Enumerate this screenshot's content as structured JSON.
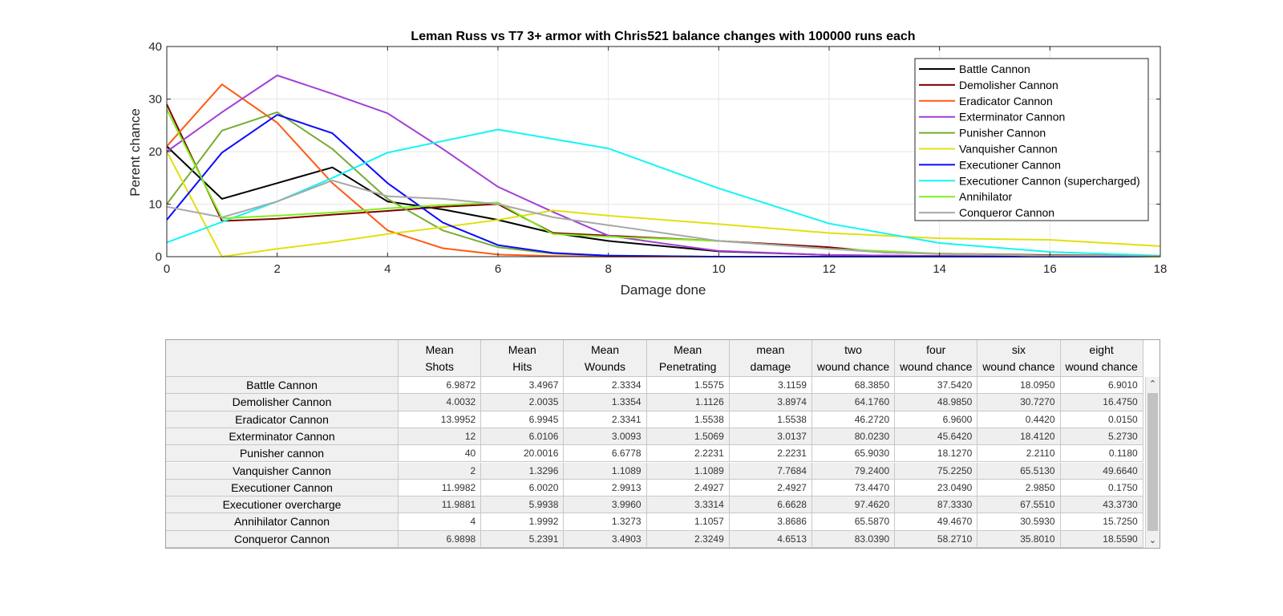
{
  "colors": {
    "battle": "#000000",
    "demolisher": "#7f0000",
    "eradicator": "#ff5a14",
    "exterminator": "#a23fd6",
    "punisher": "#77ac30",
    "vanquisher": "#e0e011",
    "executioner": "#0a0aff",
    "executioner_sc": "#12f5f5",
    "annihilator": "#7ff01a",
    "conqueror": "#a8a8a8"
  },
  "chart_data": {
    "type": "line",
    "title": "Leman Russ vs T7 3+ armor with Chris521 balance changes with 100000 runs each",
    "xlabel": "Damage done",
    "ylabel": "Perent chance",
    "xlim": [
      0,
      18
    ],
    "ylim": [
      0,
      40
    ],
    "xticks": [
      "0",
      "2",
      "4",
      "6",
      "8",
      "10",
      "12",
      "14",
      "16",
      "18"
    ],
    "yticks": [
      "0",
      "10",
      "20",
      "30",
      "40"
    ],
    "grid": true,
    "legend_position": "top-right",
    "series": [
      {
        "name": "Battle Cannon",
        "color_key": "battle",
        "points": [
          [
            0,
            21
          ],
          [
            1,
            11
          ],
          [
            2,
            14
          ],
          [
            3,
            17
          ],
          [
            4,
            10.5
          ],
          [
            5,
            9
          ],
          [
            6,
            7
          ],
          [
            7,
            4.5
          ],
          [
            8,
            3
          ],
          [
            10,
            1
          ],
          [
            12,
            0.3
          ],
          [
            14,
            0.1
          ],
          [
            18,
            0
          ]
        ]
      },
      {
        "name": "Demolisher Cannon",
        "color_key": "demolisher",
        "points": [
          [
            0,
            29
          ],
          [
            1,
            6.8
          ],
          [
            2,
            7.2
          ],
          [
            3,
            8
          ],
          [
            4,
            8.7
          ],
          [
            5,
            9.5
          ],
          [
            6,
            10
          ],
          [
            7,
            4.5
          ],
          [
            8,
            4
          ],
          [
            10,
            3
          ],
          [
            12,
            1.8
          ],
          [
            13,
            0.8
          ],
          [
            14,
            0.6
          ],
          [
            16,
            0.3
          ],
          [
            18,
            0.1
          ]
        ]
      },
      {
        "name": "Eradicator Cannon",
        "color_key": "eradicator",
        "points": [
          [
            0,
            21
          ],
          [
            1,
            32.8
          ],
          [
            2,
            25.5
          ],
          [
            3,
            14
          ],
          [
            4,
            5
          ],
          [
            5,
            1.6
          ],
          [
            6,
            0.4
          ],
          [
            7,
            0.1
          ],
          [
            8,
            0
          ],
          [
            18,
            0
          ]
        ]
      },
      {
        "name": "Exterminator Cannon",
        "color_key": "exterminator",
        "points": [
          [
            0,
            20
          ],
          [
            1,
            27.5
          ],
          [
            2,
            34.5
          ],
          [
            3,
            31
          ],
          [
            4,
            27.3
          ],
          [
            5,
            20.5
          ],
          [
            6,
            13.3
          ],
          [
            7,
            8.5
          ],
          [
            8,
            4
          ],
          [
            9,
            2.5
          ],
          [
            10,
            1.1
          ],
          [
            12,
            0.3
          ],
          [
            14,
            0.1
          ],
          [
            18,
            0
          ]
        ]
      },
      {
        "name": "Punisher Cannon",
        "color_key": "punisher",
        "points": [
          [
            0,
            10
          ],
          [
            1,
            24
          ],
          [
            2,
            27.5
          ],
          [
            3,
            20.5
          ],
          [
            4,
            11
          ],
          [
            5,
            5
          ],
          [
            6,
            1.8
          ],
          [
            7,
            0.6
          ],
          [
            8,
            0.2
          ],
          [
            10,
            0
          ],
          [
            18,
            0
          ]
        ]
      },
      {
        "name": "Vanquisher Cannon",
        "color_key": "vanquisher",
        "points": [
          [
            0,
            20
          ],
          [
            1,
            0
          ],
          [
            2,
            1.5
          ],
          [
            3,
            2.8
          ],
          [
            4,
            4.3
          ],
          [
            5,
            5.6
          ],
          [
            6,
            7
          ],
          [
            7,
            8.8
          ],
          [
            8,
            7.8
          ],
          [
            10,
            6.2
          ],
          [
            12,
            4.5
          ],
          [
            14,
            3.5
          ],
          [
            16,
            3.2
          ],
          [
            18,
            2
          ]
        ]
      },
      {
        "name": "Executioner Cannon",
        "color_key": "executioner",
        "points": [
          [
            0,
            7
          ],
          [
            1,
            19.8
          ],
          [
            2,
            27
          ],
          [
            3,
            23.5
          ],
          [
            4,
            14
          ],
          [
            5,
            6.5
          ],
          [
            6,
            2.2
          ],
          [
            7,
            0.7
          ],
          [
            8,
            0.2
          ],
          [
            10,
            0
          ],
          [
            18,
            0
          ]
        ]
      },
      {
        "name": "Executioner Cannon (supercharged)",
        "color_key": "executioner_sc",
        "points": [
          [
            0,
            2.7
          ],
          [
            2,
            10.5
          ],
          [
            3,
            15
          ],
          [
            4,
            19.8
          ],
          [
            6,
            24.2
          ],
          [
            8,
            20.6
          ],
          [
            10,
            13
          ],
          [
            12,
            6.3
          ],
          [
            14,
            2.6
          ],
          [
            16,
            0.9
          ],
          [
            18,
            0.2
          ]
        ]
      },
      {
        "name": "Annihilator",
        "color_key": "annihilator",
        "points": [
          [
            0,
            28
          ],
          [
            1,
            7.3
          ],
          [
            2,
            7.8
          ],
          [
            3,
            8.4
          ],
          [
            4,
            9.2
          ],
          [
            5,
            9.8
          ],
          [
            6,
            10.3
          ],
          [
            7,
            4.3
          ],
          [
            8,
            3.8
          ],
          [
            10,
            3
          ],
          [
            12,
            1.5
          ],
          [
            14,
            0.6
          ],
          [
            16,
            0.2
          ],
          [
            18,
            0
          ]
        ]
      },
      {
        "name": "Conqueror Cannon",
        "color_key": "conqueror",
        "points": [
          [
            0,
            9.5
          ],
          [
            1,
            7.5
          ],
          [
            2,
            10.5
          ],
          [
            3,
            14.5
          ],
          [
            4,
            11.5
          ],
          [
            5,
            11
          ],
          [
            6,
            10
          ],
          [
            7,
            7.5
          ],
          [
            8,
            6
          ],
          [
            10,
            3
          ],
          [
            12,
            1.5
          ],
          [
            13,
            0.8
          ],
          [
            14,
            0.5
          ],
          [
            16,
            0.2
          ],
          [
            18,
            0.1
          ]
        ]
      }
    ]
  },
  "table": {
    "columns": [
      [
        "Mean",
        "Shots"
      ],
      [
        "Mean",
        "Hits"
      ],
      [
        "Mean",
        "Wounds"
      ],
      [
        "Mean",
        "Penetrating"
      ],
      [
        "mean",
        "damage"
      ],
      [
        "two",
        "wound chance"
      ],
      [
        "four",
        "wound chance"
      ],
      [
        "six",
        "wound chance"
      ],
      [
        "eight",
        "wound chance"
      ]
    ],
    "rows": [
      {
        "name": "Battle Cannon",
        "values": [
          "6.9872",
          "3.4967",
          "2.3334",
          "1.5575",
          "3.1159",
          "68.3850",
          "37.5420",
          "18.0950",
          "6.9010"
        ]
      },
      {
        "name": "Demolisher Cannon",
        "values": [
          "4.0032",
          "2.0035",
          "1.3354",
          "1.1126",
          "3.8974",
          "64.1760",
          "48.9850",
          "30.7270",
          "16.4750"
        ]
      },
      {
        "name": "Eradicator Cannon",
        "values": [
          "13.9952",
          "6.9945",
          "2.3341",
          "1.5538",
          "1.5538",
          "46.2720",
          "6.9600",
          "0.4420",
          "0.0150"
        ]
      },
      {
        "name": "Exterminator Cannon",
        "values": [
          "12",
          "6.0106",
          "3.0093",
          "1.5069",
          "3.0137",
          "80.0230",
          "45.6420",
          "18.4120",
          "5.2730"
        ]
      },
      {
        "name": "Punisher cannon",
        "values": [
          "40",
          "20.0016",
          "6.6778",
          "2.2231",
          "2.2231",
          "65.9030",
          "18.1270",
          "2.2110",
          "0.1180"
        ]
      },
      {
        "name": "Vanquisher Cannon",
        "values": [
          "2",
          "1.3296",
          "1.1089",
          "1.1089",
          "7.7684",
          "79.2400",
          "75.2250",
          "65.5130",
          "49.6640"
        ]
      },
      {
        "name": "Executioner Cannon",
        "values": [
          "11.9982",
          "6.0020",
          "2.9913",
          "2.4927",
          "2.4927",
          "73.4470",
          "23.0490",
          "2.9850",
          "0.1750"
        ]
      },
      {
        "name": "Executioner overcharge",
        "values": [
          "11.9881",
          "5.9938",
          "3.9960",
          "3.3314",
          "6.6628",
          "97.4620",
          "87.3330",
          "67.5510",
          "43.3730"
        ]
      },
      {
        "name": "Annihilator Cannon",
        "values": [
          "4",
          "1.9992",
          "1.3273",
          "1.1057",
          "3.8686",
          "65.5870",
          "49.4670",
          "30.5930",
          "15.7250"
        ]
      },
      {
        "name": "Conqueror Cannon",
        "values": [
          "6.9898",
          "5.2391",
          "3.4903",
          "2.3249",
          "4.6513",
          "83.0390",
          "58.2710",
          "35.8010",
          "18.5590"
        ]
      }
    ]
  },
  "scrollbar": {
    "up_icon": "chevron-up-icon",
    "down_icon": "chevron-down-icon"
  }
}
